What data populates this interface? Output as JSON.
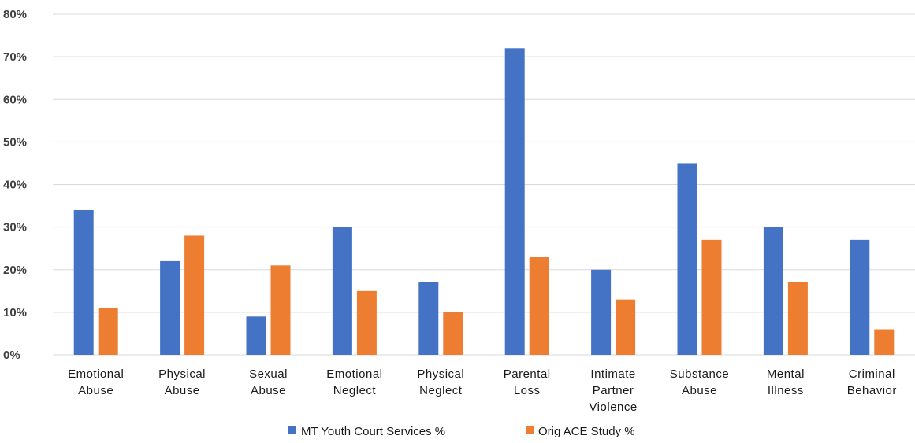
{
  "chart_data": {
    "type": "bar",
    "categories": [
      [
        "Emotional",
        "Abuse"
      ],
      [
        "Physical",
        "Abuse"
      ],
      [
        "Sexual",
        "Abuse"
      ],
      [
        "Emotional",
        "Neglect"
      ],
      [
        "Physical",
        "Neglect"
      ],
      [
        "Parental",
        "Loss"
      ],
      [
        "Intimate",
        "Partner",
        "Violence"
      ],
      [
        "Substance",
        "Abuse"
      ],
      [
        "Mental",
        "Illness"
      ],
      [
        "Criminal",
        "Behavior"
      ]
    ],
    "series": [
      {
        "name": "MT Youth Court Services %",
        "color": "#4472C4",
        "values": [
          34,
          22,
          9,
          30,
          17,
          72,
          20,
          45,
          30,
          27
        ]
      },
      {
        "name": "Orig ACE Study %",
        "color": "#ED7D31",
        "values": [
          11,
          28,
          21,
          15,
          10,
          23,
          13,
          27,
          17,
          6
        ]
      }
    ],
    "yticks": [
      "0%",
      "10%",
      "20%",
      "30%",
      "40%",
      "50%",
      "60%",
      "70%",
      "80%"
    ],
    "ylim": [
      0,
      80
    ],
    "grid": true,
    "legend": "bottom"
  }
}
